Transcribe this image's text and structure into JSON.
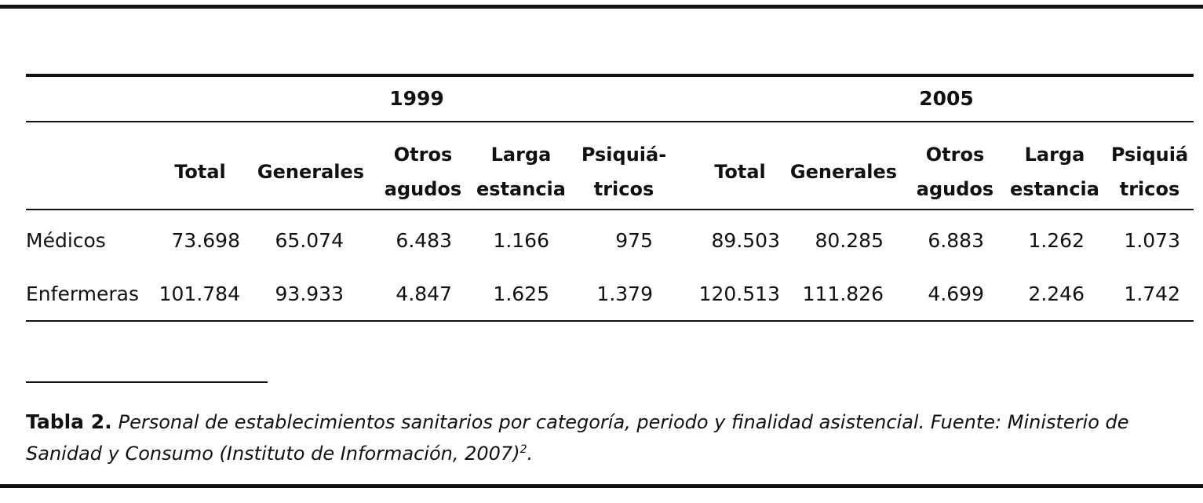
{
  "table": {
    "years": [
      "1999",
      "2005"
    ],
    "column_headers": [
      [
        "Total"
      ],
      [
        "Generales"
      ],
      [
        "Otros",
        "agudos"
      ],
      [
        "Larga",
        "estancia"
      ],
      [
        "Psiquiá-",
        "tricos"
      ],
      [
        "Total"
      ],
      [
        "Generales"
      ],
      [
        "Otros",
        "agudos"
      ],
      [
        "Larga",
        "estancia"
      ],
      [
        "Psiquiá",
        "tricos"
      ]
    ],
    "rows": [
      {
        "label": "Médicos",
        "values": [
          "73.698",
          "65.074",
          "6.483",
          "1.166",
          "975",
          "89.503",
          "80.285",
          "6.883",
          "1.262",
          "1.073"
        ]
      },
      {
        "label": "Enfermeras",
        "values": [
          "101.784",
          "93.933",
          "4.847",
          "1.625",
          "1.379",
          "120.513",
          "111.826",
          "4.699",
          "2.246",
          "1.742"
        ]
      }
    ]
  },
  "caption": {
    "label": "Tabla 2.",
    "text": "Personal de establecimientos sanitarios por categoría, periodo y finalidad asistencial. Fuente: Ministerio de Sanidad y Consumo (Instituto de Información, 2007)",
    "superscript": "2",
    "end": "."
  }
}
